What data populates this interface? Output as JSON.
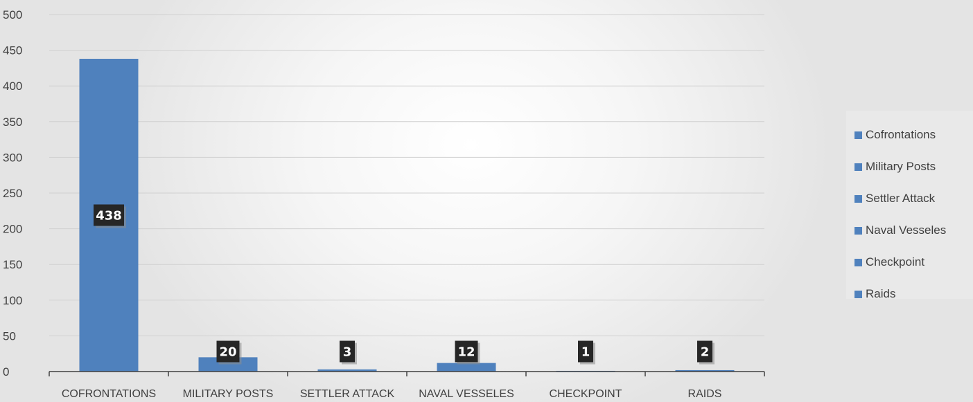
{
  "chart_data": {
    "type": "bar",
    "categories": [
      "COFRONTATIONS",
      "MILITARY POSTS",
      "SETTLER ATTACK",
      "NAVAL VESSELES",
      "CHECKPOINT",
      "RAIDS"
    ],
    "values": [
      438,
      20,
      3,
      12,
      1,
      2
    ],
    "data_labels": [
      "438",
      "20",
      "3",
      "12",
      "1",
      "2"
    ],
    "yticks": [
      "0",
      "50",
      "100",
      "150",
      "200",
      "250",
      "300",
      "350",
      "400",
      "450",
      "500"
    ],
    "ylim": [
      0,
      500
    ],
    "grid": true,
    "legend": {
      "position": "right",
      "entries": [
        "Cofrontations",
        "Military Posts",
        "Settler Attack",
        "Naval Vesseles",
        "Checkpoint",
        "Raids"
      ]
    },
    "bar_color": "#4f81bd",
    "data_label_background": "#262626"
  }
}
